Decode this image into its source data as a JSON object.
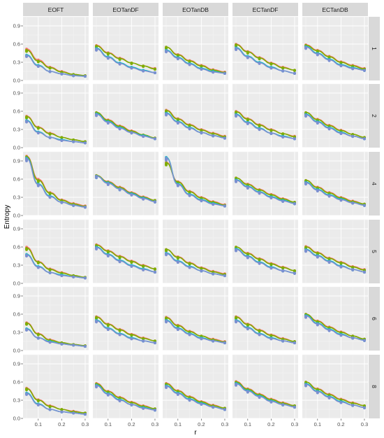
{
  "chart_data": {
    "type": "scatter",
    "title": "",
    "xlabel": "r",
    "ylabel": "Entropy",
    "col_facets": [
      "EOFT",
      "EOTanDF",
      "EOTanDB",
      "ECTanDF",
      "ECTanDB"
    ],
    "row_facets": [
      "1",
      "2",
      "4",
      "5",
      "6",
      "8"
    ],
    "x": [
      0.05,
      0.1,
      0.15,
      0.2,
      0.25,
      0.3
    ],
    "x_ticks": [
      0.1,
      0.2,
      0.3
    ],
    "x_tick_labels": [
      "0.1",
      "0.2",
      "0.3"
    ],
    "y_ticks": [
      0.0,
      0.3,
      0.6,
      0.9
    ],
    "y_tick_labels": [
      "0.0",
      "0.3",
      "0.6",
      "0.9"
    ],
    "xlim": [
      0.035,
      0.315
    ],
    "ylim": [
      0.0,
      1.05
    ],
    "grid": true,
    "legend": "none",
    "series_colors": [
      "#F8766D",
      "#7CAE00",
      "#00BFC4",
      "#7B8FD0"
    ],
    "panels": [
      {
        "col": "EOFT",
        "row": "1",
        "series": [
          [
            0.52,
            0.34,
            0.22,
            0.15,
            0.1,
            0.08
          ],
          [
            0.5,
            0.32,
            0.21,
            0.14,
            0.1,
            0.08
          ],
          [
            0.42,
            0.25,
            0.15,
            0.11,
            0.08,
            0.07
          ],
          [
            0.41,
            0.24,
            0.15,
            0.11,
            0.08,
            0.07
          ]
        ]
      },
      {
        "col": "EOTanDF",
        "row": "1",
        "series": [
          [
            0.58,
            0.46,
            0.37,
            0.29,
            0.24,
            0.2
          ],
          [
            0.57,
            0.45,
            0.36,
            0.29,
            0.24,
            0.19
          ],
          [
            0.53,
            0.39,
            0.29,
            0.22,
            0.17,
            0.13
          ],
          [
            0.52,
            0.38,
            0.28,
            0.21,
            0.16,
            0.13
          ]
        ]
      },
      {
        "col": "EOTanDB",
        "row": "1",
        "series": [
          [
            0.55,
            0.43,
            0.33,
            0.25,
            0.18,
            0.14
          ],
          [
            0.55,
            0.42,
            0.32,
            0.24,
            0.17,
            0.13
          ],
          [
            0.5,
            0.38,
            0.28,
            0.2,
            0.15,
            0.12
          ],
          [
            0.49,
            0.37,
            0.27,
            0.19,
            0.14,
            0.12
          ]
        ]
      },
      {
        "col": "ECTanDF",
        "row": "1",
        "series": [
          [
            0.6,
            0.48,
            0.38,
            0.29,
            0.22,
            0.17
          ],
          [
            0.59,
            0.47,
            0.37,
            0.28,
            0.21,
            0.17
          ],
          [
            0.54,
            0.4,
            0.3,
            0.22,
            0.16,
            0.12
          ],
          [
            0.53,
            0.39,
            0.29,
            0.21,
            0.16,
            0.12
          ]
        ]
      },
      {
        "col": "ECTanDB",
        "row": "1",
        "series": [
          [
            0.59,
            0.5,
            0.4,
            0.31,
            0.25,
            0.2
          ],
          [
            0.58,
            0.49,
            0.39,
            0.3,
            0.24,
            0.19
          ],
          [
            0.56,
            0.45,
            0.35,
            0.26,
            0.21,
            0.17
          ],
          [
            0.55,
            0.44,
            0.34,
            0.25,
            0.2,
            0.17
          ]
        ]
      },
      {
        "col": "EOFT",
        "row": "2",
        "series": [
          [
            0.52,
            0.34,
            0.24,
            0.17,
            0.13,
            0.1
          ],
          [
            0.51,
            0.33,
            0.23,
            0.17,
            0.13,
            0.1
          ],
          [
            0.45,
            0.26,
            0.17,
            0.13,
            0.1,
            0.08
          ],
          [
            0.44,
            0.25,
            0.17,
            0.12,
            0.1,
            0.08
          ]
        ]
      },
      {
        "col": "EOTanDF",
        "row": "2",
        "series": [
          [
            0.58,
            0.46,
            0.36,
            0.28,
            0.21,
            0.16
          ],
          [
            0.58,
            0.45,
            0.35,
            0.27,
            0.21,
            0.16
          ],
          [
            0.56,
            0.43,
            0.33,
            0.25,
            0.2,
            0.15
          ],
          [
            0.55,
            0.42,
            0.32,
            0.25,
            0.19,
            0.15
          ]
        ]
      },
      {
        "col": "EOTanDB",
        "row": "2",
        "series": [
          [
            0.62,
            0.48,
            0.38,
            0.3,
            0.24,
            0.19
          ],
          [
            0.61,
            0.47,
            0.37,
            0.29,
            0.23,
            0.18
          ],
          [
            0.57,
            0.43,
            0.33,
            0.25,
            0.2,
            0.16
          ],
          [
            0.56,
            0.42,
            0.32,
            0.25,
            0.2,
            0.16
          ]
        ]
      },
      {
        "col": "ECTanDF",
        "row": "2",
        "series": [
          [
            0.6,
            0.48,
            0.38,
            0.3,
            0.23,
            0.19
          ],
          [
            0.59,
            0.47,
            0.37,
            0.29,
            0.23,
            0.18
          ],
          [
            0.55,
            0.42,
            0.32,
            0.24,
            0.19,
            0.15
          ],
          [
            0.54,
            0.41,
            0.31,
            0.24,
            0.18,
            0.15
          ]
        ]
      },
      {
        "col": "ECTanDB",
        "row": "2",
        "series": [
          [
            0.58,
            0.47,
            0.37,
            0.29,
            0.22,
            0.17
          ],
          [
            0.58,
            0.46,
            0.36,
            0.28,
            0.22,
            0.17
          ],
          [
            0.55,
            0.43,
            0.33,
            0.25,
            0.19,
            0.15
          ],
          [
            0.54,
            0.42,
            0.32,
            0.24,
            0.19,
            0.15
          ]
        ]
      },
      {
        "col": "EOFT",
        "row": "4",
        "series": [
          [
            0.98,
            0.6,
            0.38,
            0.26,
            0.2,
            0.16
          ],
          [
            0.97,
            0.58,
            0.37,
            0.25,
            0.19,
            0.15
          ],
          [
            0.95,
            0.52,
            0.32,
            0.22,
            0.17,
            0.14
          ],
          [
            0.94,
            0.51,
            0.31,
            0.22,
            0.17,
            0.14
          ]
        ]
      },
      {
        "col": "EOTanDF",
        "row": "4",
        "series": [
          [
            0.66,
            0.56,
            0.47,
            0.38,
            0.31,
            0.25
          ],
          [
            0.66,
            0.55,
            0.46,
            0.37,
            0.3,
            0.25
          ],
          [
            0.65,
            0.54,
            0.44,
            0.36,
            0.29,
            0.23
          ],
          [
            0.65,
            0.53,
            0.44,
            0.35,
            0.28,
            0.23
          ]
        ]
      },
      {
        "col": "EOTanDB",
        "row": "4",
        "series": [
          [
            0.88,
            0.56,
            0.4,
            0.3,
            0.23,
            0.18
          ],
          [
            0.87,
            0.55,
            0.39,
            0.29,
            0.22,
            0.17
          ],
          [
            0.96,
            0.52,
            0.35,
            0.26,
            0.2,
            0.16
          ],
          [
            0.95,
            0.51,
            0.34,
            0.25,
            0.19,
            0.16
          ]
        ]
      },
      {
        "col": "ECTanDF",
        "row": "4",
        "series": [
          [
            0.62,
            0.52,
            0.43,
            0.35,
            0.28,
            0.22
          ],
          [
            0.62,
            0.51,
            0.42,
            0.34,
            0.27,
            0.22
          ],
          [
            0.59,
            0.48,
            0.39,
            0.31,
            0.25,
            0.2
          ],
          [
            0.58,
            0.47,
            0.38,
            0.3,
            0.24,
            0.2
          ]
        ]
      },
      {
        "col": "ECTanDB",
        "row": "4",
        "series": [
          [
            0.58,
            0.47,
            0.38,
            0.3,
            0.24,
            0.19
          ],
          [
            0.58,
            0.46,
            0.37,
            0.29,
            0.23,
            0.19
          ],
          [
            0.55,
            0.43,
            0.34,
            0.27,
            0.21,
            0.17
          ],
          [
            0.54,
            0.42,
            0.33,
            0.26,
            0.21,
            0.17
          ]
        ]
      },
      {
        "col": "EOFT",
        "row": "5",
        "series": [
          [
            0.6,
            0.36,
            0.24,
            0.18,
            0.13,
            0.1
          ],
          [
            0.58,
            0.35,
            0.23,
            0.17,
            0.13,
            0.1
          ],
          [
            0.48,
            0.28,
            0.18,
            0.14,
            0.11,
            0.09
          ],
          [
            0.47,
            0.27,
            0.18,
            0.13,
            0.11,
            0.09
          ]
        ]
      },
      {
        "col": "EOTanDF",
        "row": "5",
        "series": [
          [
            0.64,
            0.54,
            0.45,
            0.37,
            0.3,
            0.24
          ],
          [
            0.63,
            0.53,
            0.44,
            0.36,
            0.29,
            0.24
          ],
          [
            0.6,
            0.48,
            0.38,
            0.3,
            0.24,
            0.19
          ],
          [
            0.59,
            0.47,
            0.37,
            0.29,
            0.23,
            0.19
          ]
        ]
      },
      {
        "col": "EOTanDB",
        "row": "5",
        "series": [
          [
            0.56,
            0.44,
            0.34,
            0.26,
            0.2,
            0.16
          ],
          [
            0.56,
            0.43,
            0.33,
            0.25,
            0.19,
            0.15
          ],
          [
            0.5,
            0.37,
            0.28,
            0.21,
            0.16,
            0.13
          ],
          [
            0.49,
            0.36,
            0.27,
            0.21,
            0.16,
            0.13
          ]
        ]
      },
      {
        "col": "ECTanDF",
        "row": "5",
        "series": [
          [
            0.6,
            0.5,
            0.41,
            0.33,
            0.27,
            0.21
          ],
          [
            0.6,
            0.49,
            0.4,
            0.32,
            0.26,
            0.21
          ],
          [
            0.57,
            0.45,
            0.35,
            0.27,
            0.21,
            0.17
          ],
          [
            0.56,
            0.44,
            0.34,
            0.26,
            0.21,
            0.17
          ]
        ]
      },
      {
        "col": "ECTanDB",
        "row": "5",
        "series": [
          [
            0.61,
            0.51,
            0.42,
            0.35,
            0.28,
            0.23
          ],
          [
            0.6,
            0.5,
            0.41,
            0.34,
            0.27,
            0.22
          ],
          [
            0.56,
            0.46,
            0.37,
            0.29,
            0.23,
            0.19
          ],
          [
            0.55,
            0.45,
            0.36,
            0.28,
            0.23,
            0.19
          ]
        ]
      },
      {
        "col": "EOFT",
        "row": "6",
        "series": [
          [
            0.46,
            0.28,
            0.18,
            0.13,
            0.1,
            0.08
          ],
          [
            0.45,
            0.27,
            0.17,
            0.13,
            0.1,
            0.08
          ],
          [
            0.36,
            0.21,
            0.15,
            0.11,
            0.09,
            0.07
          ],
          [
            0.35,
            0.21,
            0.14,
            0.11,
            0.09,
            0.07
          ]
        ]
      },
      {
        "col": "EOTanDF",
        "row": "6",
        "series": [
          [
            0.56,
            0.44,
            0.35,
            0.27,
            0.21,
            0.16
          ],
          [
            0.55,
            0.43,
            0.34,
            0.26,
            0.2,
            0.16
          ],
          [
            0.5,
            0.37,
            0.28,
            0.21,
            0.16,
            0.13
          ],
          [
            0.49,
            0.36,
            0.27,
            0.2,
            0.16,
            0.13
          ]
        ]
      },
      {
        "col": "EOTanDB",
        "row": "6",
        "series": [
          [
            0.55,
            0.42,
            0.32,
            0.24,
            0.19,
            0.15
          ],
          [
            0.54,
            0.41,
            0.31,
            0.24,
            0.18,
            0.14
          ],
          [
            0.5,
            0.37,
            0.28,
            0.21,
            0.16,
            0.13
          ],
          [
            0.49,
            0.36,
            0.27,
            0.2,
            0.16,
            0.13
          ]
        ]
      },
      {
        "col": "ECTanDF",
        "row": "6",
        "series": [
          [
            0.56,
            0.44,
            0.34,
            0.26,
            0.2,
            0.15
          ],
          [
            0.55,
            0.43,
            0.33,
            0.25,
            0.19,
            0.15
          ],
          [
            0.5,
            0.38,
            0.28,
            0.21,
            0.16,
            0.13
          ],
          [
            0.49,
            0.37,
            0.27,
            0.2,
            0.16,
            0.13
          ]
        ]
      },
      {
        "col": "ECTanDB",
        "row": "6",
        "series": [
          [
            0.6,
            0.49,
            0.39,
            0.31,
            0.24,
            0.19
          ],
          [
            0.6,
            0.48,
            0.38,
            0.3,
            0.24,
            0.19
          ],
          [
            0.58,
            0.45,
            0.35,
            0.27,
            0.21,
            0.17
          ],
          [
            0.57,
            0.44,
            0.34,
            0.26,
            0.21,
            0.17
          ]
        ]
      },
      {
        "col": "EOFT",
        "row": "8",
        "series": [
          [
            0.5,
            0.31,
            0.21,
            0.15,
            0.12,
            0.09
          ],
          [
            0.49,
            0.3,
            0.2,
            0.15,
            0.11,
            0.09
          ],
          [
            0.42,
            0.24,
            0.15,
            0.11,
            0.09,
            0.07
          ],
          [
            0.41,
            0.23,
            0.15,
            0.11,
            0.09,
            0.07
          ]
        ]
      },
      {
        "col": "EOTanDF",
        "row": "8",
        "series": [
          [
            0.58,
            0.45,
            0.35,
            0.27,
            0.21,
            0.16
          ],
          [
            0.57,
            0.44,
            0.34,
            0.26,
            0.2,
            0.16
          ],
          [
            0.55,
            0.41,
            0.31,
            0.23,
            0.18,
            0.14
          ],
          [
            0.54,
            0.4,
            0.3,
            0.23,
            0.17,
            0.14
          ]
        ]
      },
      {
        "col": "EOTanDB",
        "row": "8",
        "series": [
          [
            0.58,
            0.46,
            0.36,
            0.28,
            0.22,
            0.17
          ],
          [
            0.57,
            0.45,
            0.35,
            0.27,
            0.21,
            0.17
          ],
          [
            0.54,
            0.42,
            0.32,
            0.25,
            0.19,
            0.15
          ],
          [
            0.53,
            0.41,
            0.31,
            0.24,
            0.19,
            0.15
          ]
        ]
      },
      {
        "col": "ECTanDF",
        "row": "8",
        "series": [
          [
            0.61,
            0.49,
            0.4,
            0.32,
            0.26,
            0.21
          ],
          [
            0.6,
            0.48,
            0.39,
            0.31,
            0.25,
            0.21
          ],
          [
            0.58,
            0.46,
            0.37,
            0.29,
            0.23,
            0.19
          ],
          [
            0.57,
            0.45,
            0.36,
            0.28,
            0.23,
            0.19
          ]
        ]
      },
      {
        "col": "ECTanDB",
        "row": "8",
        "series": [
          [
            0.6,
            0.49,
            0.4,
            0.32,
            0.26,
            0.21
          ],
          [
            0.6,
            0.48,
            0.39,
            0.31,
            0.25,
            0.21
          ],
          [
            0.57,
            0.45,
            0.36,
            0.28,
            0.22,
            0.18
          ],
          [
            0.56,
            0.44,
            0.35,
            0.27,
            0.22,
            0.18
          ]
        ]
      }
    ]
  }
}
